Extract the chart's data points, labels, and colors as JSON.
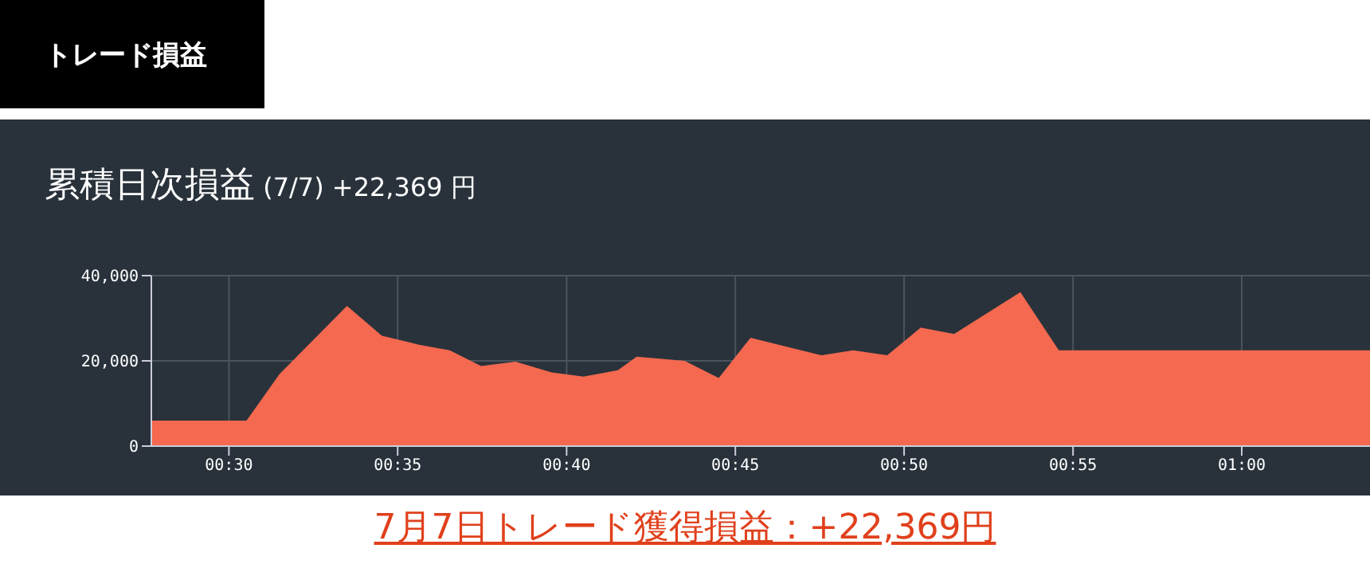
{
  "chart_data": {
    "type": "area",
    "title": "累積日次損益",
    "subtitle": "(7/7) +22,369 円",
    "annotations": [
      "トレード損益",
      "7月7日トレード獲得損益：+22,369円"
    ],
    "x": [
      0.4617,
      0.5087,
      0.525,
      0.5583,
      0.5755,
      0.5938,
      0.609,
      0.6245,
      0.6415,
      0.6593,
      0.675,
      0.692,
      0.7013,
      0.725,
      0.7418,
      0.7575,
      0.7925,
      0.8082,
      0.825,
      0.8415,
      0.858,
      0.8907,
      0.9097,
      1.0633
    ],
    "series": [
      {
        "color": "#f4694f",
        "values": [
          6000,
          6000,
          16900,
          32900,
          25900,
          23800,
          22500,
          18800,
          19800,
          17300,
          16300,
          17800,
          21000,
          20000,
          16000,
          25400,
          21300,
          22500,
          21300,
          27800,
          26300,
          36100,
          22500,
          22500
        ]
      }
    ],
    "xlim": [
      0.4617,
      1.0633
    ],
    "xticks": [
      {
        "value": 0.5,
        "label": "00:30"
      },
      {
        "value": 0.5833,
        "label": "00:35"
      },
      {
        "value": 0.6667,
        "label": "00:40"
      },
      {
        "value": 0.75,
        "label": "00:45"
      },
      {
        "value": 0.8333,
        "label": "00:50"
      },
      {
        "value": 0.9167,
        "label": "00:55"
      },
      {
        "value": 1,
        "label": "01:00"
      }
    ],
    "ylim": [
      0,
      40000
    ],
    "yticks": [
      {
        "value": 0,
        "label": "0"
      },
      {
        "value": 20000,
        "label": "20,000"
      },
      {
        "value": 40000,
        "label": "40,000"
      }
    ],
    "grid": true
  }
}
